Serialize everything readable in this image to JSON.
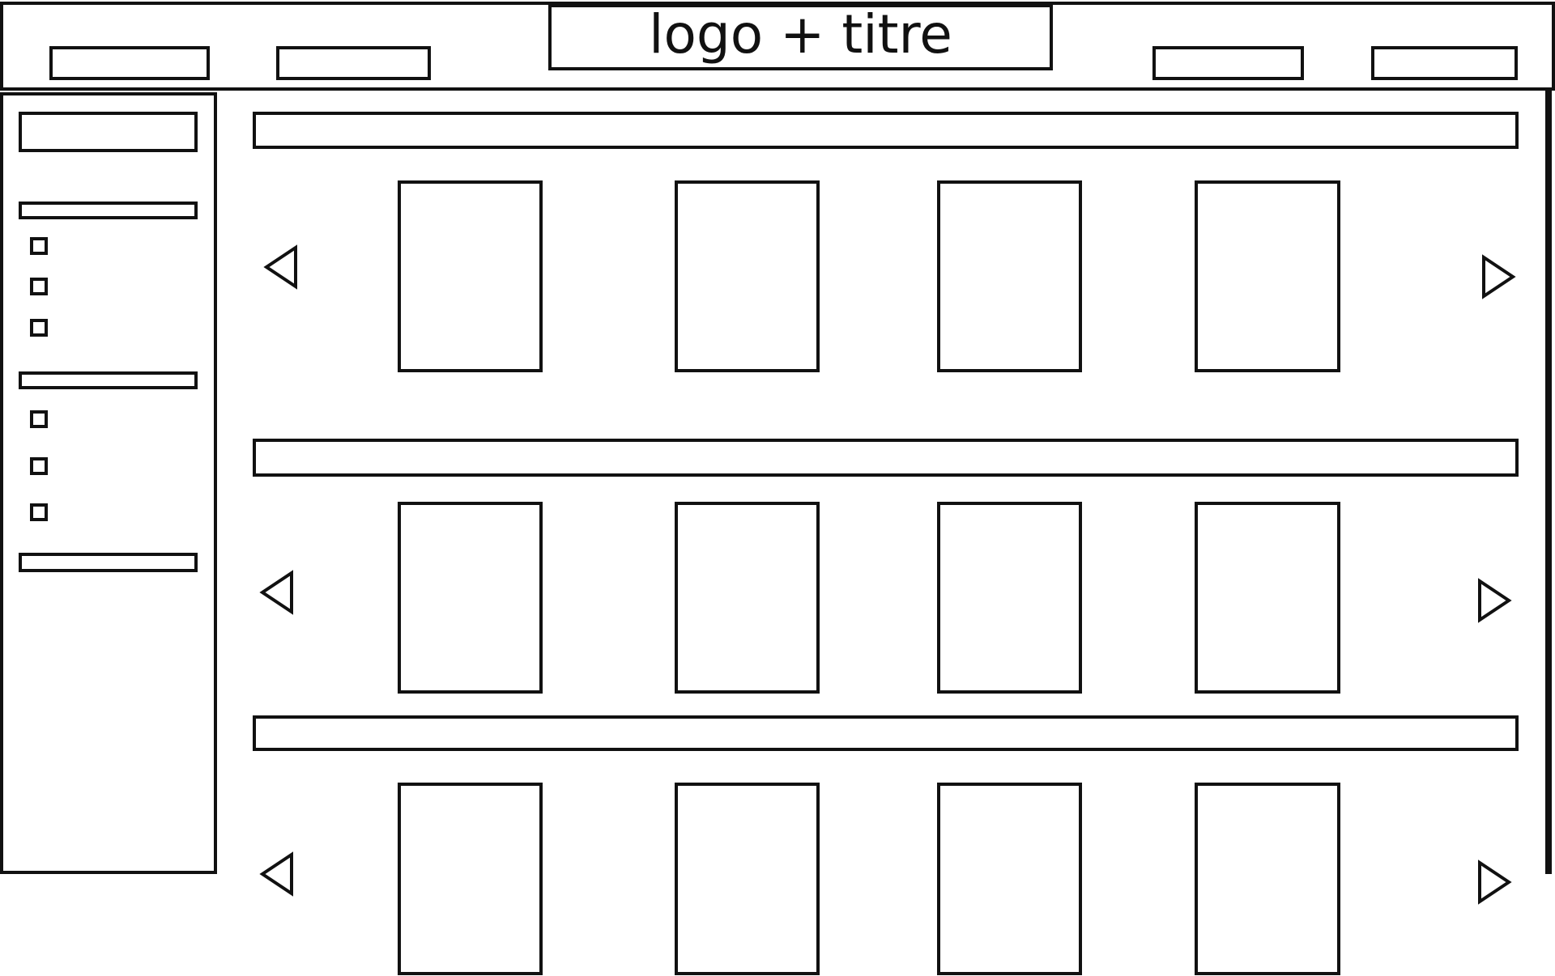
{
  "header": {
    "title": "logo + titre"
  },
  "sidebar": {
    "search_box": {},
    "sections": [
      {
        "header": {},
        "items": [
          {},
          {},
          {}
        ]
      },
      {
        "header": {},
        "items": [
          {},
          {},
          {}
        ]
      },
      {
        "header": {},
        "items": []
      }
    ]
  },
  "carousels": [
    {
      "items": [
        {},
        {},
        {},
        {}
      ]
    },
    {
      "items": [
        {},
        {},
        {},
        {}
      ]
    },
    {
      "items": [
        {},
        {},
        {},
        {}
      ]
    }
  ],
  "colors": {
    "stroke": "#111111",
    "background": "#ffffff"
  },
  "icons": {
    "prev": "triangle-left-icon",
    "next": "triangle-right-icon"
  }
}
